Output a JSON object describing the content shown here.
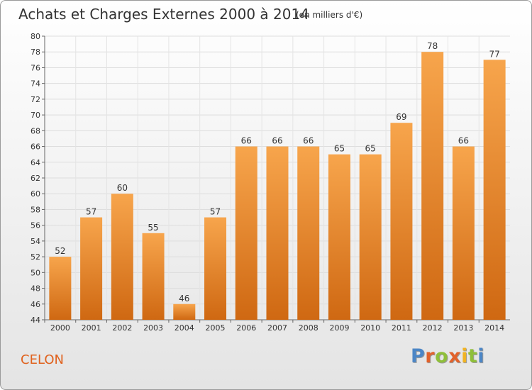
{
  "header": {
    "title": "Achats et Charges Externes 2000 à 2014",
    "unit": "(en milliers d'€)"
  },
  "footer": {
    "commune": "CELON",
    "logo_letters": [
      "P",
      "r",
      "o",
      "x",
      "i",
      "t",
      "i"
    ],
    "logo_colors": [
      "#4c86c6",
      "#e2622b",
      "#8fbf3a",
      "#e2622b",
      "#f0b323",
      "#8fbf3a",
      "#4c86c6"
    ]
  },
  "chart_data": {
    "type": "bar",
    "title": "Achats et Charges Externes 2000 à 2014",
    "subtitle": "(en milliers d'€)",
    "xlabel": "",
    "ylabel": "",
    "categories": [
      "2000",
      "2001",
      "2002",
      "2003",
      "2004",
      "2005",
      "2006",
      "2007",
      "2008",
      "2009",
      "2010",
      "2011",
      "2012",
      "2013",
      "2014"
    ],
    "values": [
      52,
      57,
      60,
      55,
      46,
      57,
      66,
      66,
      66,
      65,
      65,
      69,
      78,
      66,
      77
    ],
    "ylim": [
      44,
      80
    ],
    "yticks": [
      "44",
      "46",
      "48",
      "50",
      "52",
      "54",
      "56",
      "58",
      "60",
      "62",
      "64",
      "66",
      "68",
      "70",
      "72",
      "74",
      "76",
      "78",
      "80"
    ],
    "grid": true,
    "bar_color_top": "#f7a54c",
    "bar_color_bottom": "#cf6812"
  }
}
